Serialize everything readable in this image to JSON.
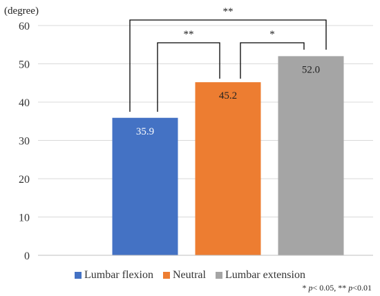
{
  "chart_data": {
    "type": "bar",
    "categories": [
      "Lumbar flexion",
      "Neutral",
      "Lumbar extension"
    ],
    "values": [
      35.9,
      45.2,
      52.0
    ],
    "value_labels": [
      "35.9",
      "45.2",
      "52.0"
    ],
    "colors": [
      "#4472C4",
      "#ED7D31",
      "#A5A5A5"
    ],
    "label_colors": [
      "#ffffff",
      "#222222",
      "#222222"
    ],
    "unit_label": "(degree)",
    "ylim": [
      0,
      60
    ],
    "yticks": [
      0,
      10,
      20,
      30,
      40,
      50,
      60
    ],
    "ytick_labels": [
      "0",
      "10",
      "20",
      "30",
      "40",
      "50",
      "60"
    ],
    "grid": true,
    "legend_position": "bottom",
    "significance": [
      {
        "from": 0,
        "to": 2,
        "label": "**"
      },
      {
        "from": 0,
        "to": 1,
        "label": "**"
      },
      {
        "from": 1,
        "to": 2,
        "label": "*"
      }
    ],
    "footnote": {
      "star1_prefix": "* ",
      "p": "p",
      "star1_rest": "< 0.05,  ** ",
      "star2_rest": "<0.01"
    }
  }
}
